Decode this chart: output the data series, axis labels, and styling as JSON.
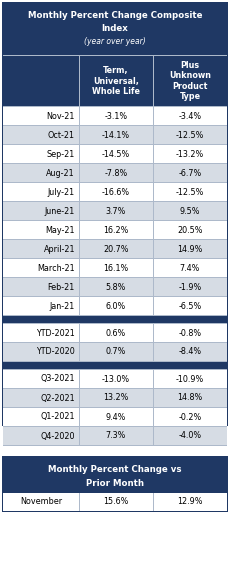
{
  "title_line1": "Monthly Percent Change Composite",
  "title_line2": "Index",
  "title_line3": "(year over year)",
  "header_col2": "Term,\nUniversal,\nWhole Life",
  "header_col3": "Plus\nUnknown\nProduct\nType",
  "monthly_rows": [
    [
      "Nov-21",
      "-3.1%",
      "-3.4%"
    ],
    [
      "Oct-21",
      "-14.1%",
      "-12.5%"
    ],
    [
      "Sep-21",
      "-14.5%",
      "-13.2%"
    ],
    [
      "Aug-21",
      "-7.8%",
      "-6.7%"
    ],
    [
      "July-21",
      "-16.6%",
      "-12.5%"
    ],
    [
      "June-21",
      "3.7%",
      "9.5%"
    ],
    [
      "May-21",
      "16.2%",
      "20.5%"
    ],
    [
      "April-21",
      "20.7%",
      "14.9%"
    ],
    [
      "March-21",
      "16.1%",
      "7.4%"
    ],
    [
      "Feb-21",
      "5.8%",
      "-1.9%"
    ],
    [
      "Jan-21",
      "6.0%",
      "-6.5%"
    ]
  ],
  "ytd_rows": [
    [
      "YTD-2021",
      "0.6%",
      "-0.8%"
    ],
    [
      "YTD-2020",
      "0.7%",
      "-8.4%"
    ]
  ],
  "quarterly_rows": [
    [
      "Q3-2021",
      "-13.0%",
      "-10.9%"
    ],
    [
      "Q2-2021",
      "13.2%",
      "14.8%"
    ],
    [
      "Q1-2021",
      "9.4%",
      "-0.2%"
    ],
    [
      "Q4-2020",
      "7.3%",
      "-4.0%"
    ]
  ],
  "bottom_title_line1": "Monthly Percent Change vs",
  "bottom_title_line2": "Prior Month",
  "bottom_row": [
    "November",
    "15.6%",
    "12.9%"
  ],
  "header_bg": "#1F3864",
  "header_text": "#FFFFFF",
  "row_bg_even": "#FFFFFF",
  "row_bg_odd": "#D6DCE4",
  "separator_bg": "#1F3864",
  "title_bg": "#1F3864",
  "title_text": "#FFFFFF",
  "border_color": "#1F3864",
  "cell_border": "#ADB9CA",
  "body_text": "#000000",
  "bottom_header_bg": "#1F3864",
  "bottom_header_text": "#FFFFFF",
  "bottom_row_bg": "#FFFFFF"
}
